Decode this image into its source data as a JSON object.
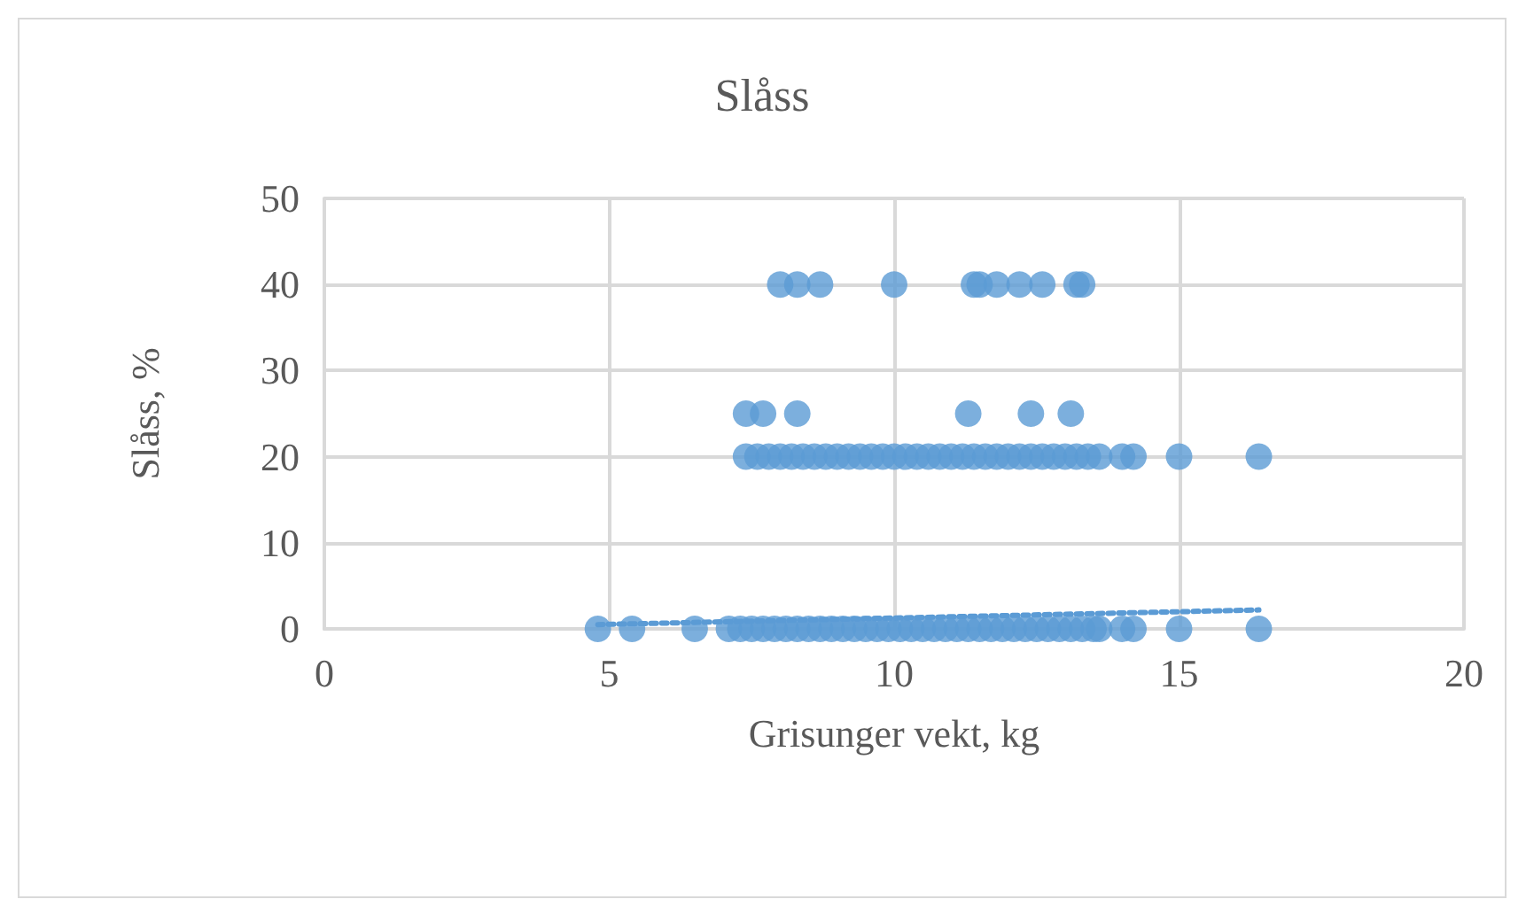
{
  "chart_data": {
    "type": "scatter",
    "title": "Slåss",
    "xlabel": "Grisunger vekt, kg",
    "ylabel": "Slåss, %",
    "xlim": [
      0,
      20
    ],
    "xticks": [
      0,
      5,
      10,
      15,
      20
    ],
    "ylim": [
      0,
      50
    ],
    "yticks": [
      0,
      10,
      20,
      30,
      40,
      50
    ],
    "grid": true,
    "marker": "circle",
    "series": [
      {
        "color": "#5b9bd5",
        "x": [
          8.0,
          8.3,
          8.7,
          10.0,
          11.4,
          11.5,
          11.8,
          12.2,
          12.6,
          13.2,
          13.3,
          7.4,
          7.7,
          8.3,
          11.3,
          12.4,
          13.1,
          7.4,
          7.6,
          7.8,
          8.0,
          8.2,
          8.4,
          8.6,
          8.8,
          9.0,
          9.2,
          9.4,
          9.6,
          9.8,
          10.0,
          10.2,
          10.4,
          10.6,
          10.8,
          11.0,
          11.2,
          11.4,
          11.6,
          11.8,
          12.0,
          12.2,
          12.4,
          12.6,
          12.8,
          13.0,
          13.2,
          13.4,
          13.6,
          14.0,
          14.2,
          15.0,
          16.4,
          4.8,
          5.4,
          6.5,
          7.1,
          7.3,
          7.5,
          7.7,
          7.9,
          8.1,
          8.3,
          8.5,
          8.7,
          8.9,
          9.1,
          9.3,
          9.5,
          9.7,
          9.9,
          10.1,
          10.3,
          10.5,
          10.7,
          10.9,
          11.1,
          11.3,
          11.5,
          11.7,
          11.9,
          12.1,
          12.3,
          12.5,
          12.7,
          12.9,
          13.1,
          13.3,
          13.5,
          13.6,
          14.0,
          14.2,
          15.0,
          16.4
        ],
        "values": [
          40,
          40,
          40,
          40,
          40,
          40,
          40,
          40,
          40,
          40,
          40,
          25,
          25,
          25,
          25,
          25,
          25,
          20,
          20,
          20,
          20,
          20,
          20,
          20,
          20,
          20,
          20,
          20,
          20,
          20,
          20,
          20,
          20,
          20,
          20,
          20,
          20,
          20,
          20,
          20,
          20,
          20,
          20,
          20,
          20,
          20,
          20,
          20,
          20,
          20,
          20,
          20,
          20,
          0,
          0,
          0,
          0,
          0,
          0,
          0,
          0,
          0,
          0,
          0,
          0,
          0,
          0,
          0,
          0,
          0,
          0,
          0,
          0,
          0,
          0,
          0,
          0,
          0,
          0,
          0,
          0,
          0,
          0,
          0,
          0,
          0,
          0,
          0,
          0,
          0,
          0,
          0,
          0,
          0
        ]
      },
      {
        "type": "line",
        "color": "#5b9bd5",
        "line_style": "dotted",
        "marker": "none",
        "x": [
          4.8,
          16.4
        ],
        "values": [
          0.5,
          2.2
        ]
      }
    ]
  }
}
